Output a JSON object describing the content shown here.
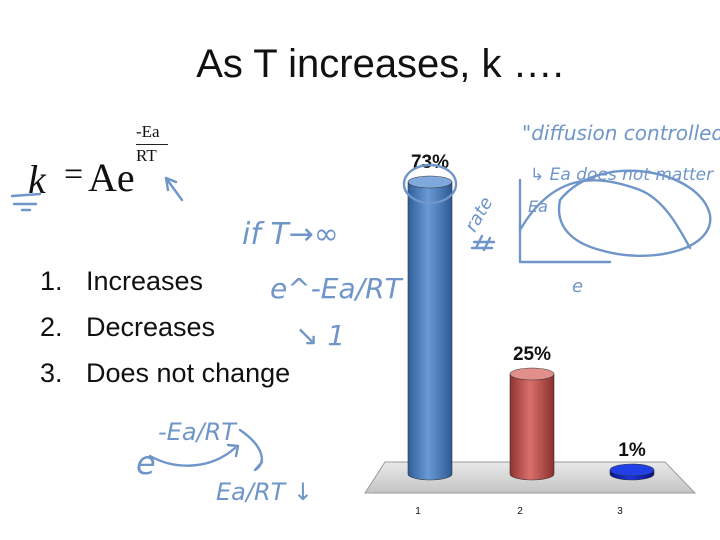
{
  "slide": {
    "title": "As T increases, k ….",
    "formula": {
      "lhs": "k",
      "equals": "=",
      "base": "Ae",
      "exponent_numerator": "-Ea",
      "exponent_denominator": "RT"
    }
  },
  "answers": [
    {
      "number": "1.",
      "label": "Increases"
    },
    {
      "number": "2.",
      "label": "Decreases"
    },
    {
      "number": "3.",
      "label": "Does not change"
    }
  ],
  "annotations": {
    "if_t": "if T→∞",
    "exp_term": "e^-Ea/RT",
    "arrow_one": "↘ 1",
    "diffusion": "\"diffusion controlled\"",
    "ea_note": "↳ Ea does not matter",
    "rate_label": "rate",
    "ea_label": "Ea",
    "e_lower": "e",
    "ea_over_rt": "-Ea/RT",
    "ea_rt_down": "Ea/RT ↓"
  },
  "colors": {
    "ink": "#6f95c9",
    "bar_blue": "#4f81bd",
    "bar_red": "#c0504d",
    "bar_navy": "#0a1fb5",
    "floor": "#d9d9d9"
  },
  "chart_data": {
    "type": "bar",
    "categories": [
      "1",
      "2",
      "3"
    ],
    "values": [
      73,
      25,
      1
    ],
    "data_labels": [
      "73%",
      "25%",
      "1%"
    ],
    "title": "",
    "xlabel": "",
    "ylabel": "",
    "ylim": [
      0,
      100
    ],
    "grid": false,
    "legend": "none",
    "style": "3D cylinders"
  }
}
